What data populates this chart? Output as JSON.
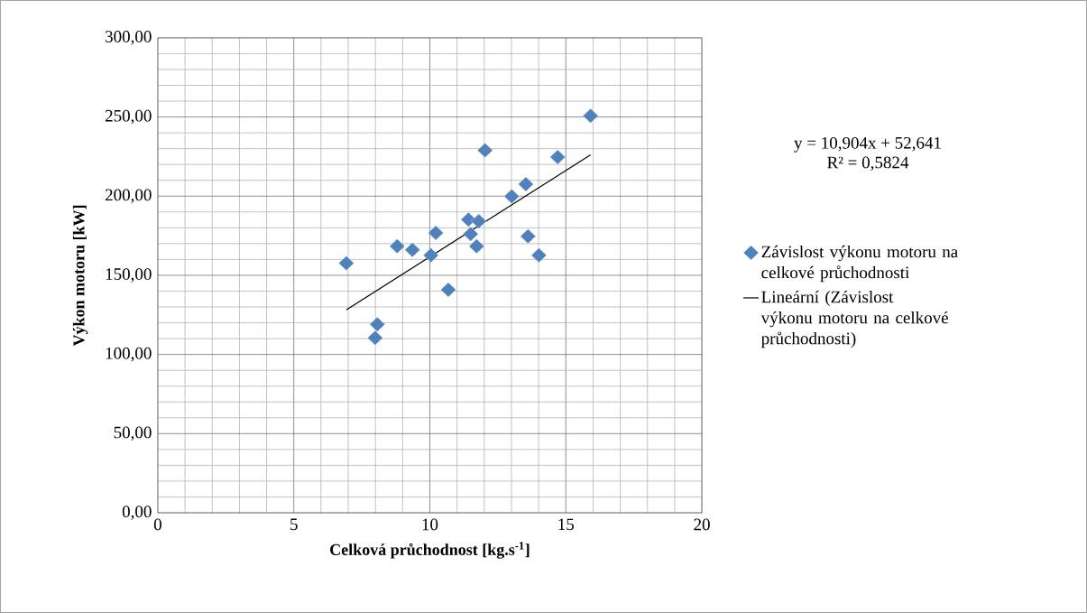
{
  "chart_data": {
    "type": "scatter",
    "xlabel": "Celková průchodnost [kg.s$^{-1}$]",
    "ylabel": "Výkon motoru [kW]",
    "xlim": [
      0,
      20
    ],
    "ylim": [
      0,
      300
    ],
    "xticks": [
      0,
      5,
      10,
      15,
      20
    ],
    "yticks": [
      {
        "value": 0,
        "label": "0,00"
      },
      {
        "value": 50,
        "label": "50,00"
      },
      {
        "value": 100,
        "label": "100,00"
      },
      {
        "value": 150,
        "label": "150,00"
      },
      {
        "value": 200,
        "label": "200,00"
      },
      {
        "value": 250,
        "label": "250,00"
      },
      {
        "value": 300,
        "label": "300,00"
      }
    ],
    "grid": true,
    "legend": "right",
    "marker": "diamond",
    "annotations": [
      "y = 10,904x + 52,641",
      "R² = 0,5824"
    ],
    "series": [
      {
        "name": "Závislost výkonu motoru na celkové průchodnosti",
        "color": "#4f81bd",
        "x": [
          6.93,
          8.07,
          7.99,
          8.8,
          9.36,
          10.04,
          10.22,
          10.68,
          11.42,
          11.8,
          11.5,
          11.72,
          12.03,
          13.01,
          13.53,
          13.61,
          14.01,
          14.7,
          15.91
        ],
        "values": [
          157.6,
          119.0,
          110.5,
          168.4,
          166.1,
          162.7,
          176.8,
          140.9,
          185.2,
          184.2,
          176.1,
          168.4,
          228.9,
          199.8,
          207.6,
          174.7,
          162.7,
          224.7,
          250.8
        ]
      },
      {
        "name": "Lineární (Závislost výkonu motoru na celkové průchodnosti)",
        "type": "line",
        "color": "#000000",
        "marker": "none",
        "x": [
          6.93,
          15.91
        ],
        "values": [
          128.2,
          226.1
        ]
      }
    ]
  }
}
